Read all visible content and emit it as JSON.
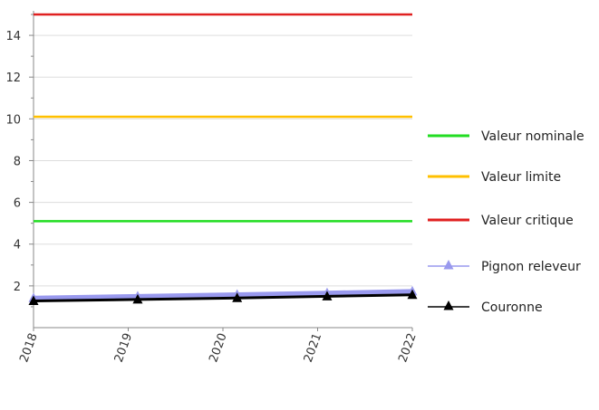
{
  "chart_data": {
    "type": "line",
    "title": "",
    "xlabel": "",
    "ylabel": "",
    "x_ticks": [
      "2018",
      "2019",
      "2020",
      "2021",
      "2022"
    ],
    "xlim": [
      2018,
      2022
    ],
    "ylim": [
      0,
      15
    ],
    "y_ticks": [
      2,
      4,
      6,
      8,
      10,
      12,
      14
    ],
    "grid": true,
    "legend_position": "right",
    "series": [
      {
        "name": "Valeur nominale",
        "color": "#22dd22",
        "marker": "none",
        "x": [
          2018,
          2022
        ],
        "y": [
          5.1,
          5.1
        ]
      },
      {
        "name": "Valeur limite",
        "color": "#ffc000",
        "marker": "none",
        "x": [
          2018,
          2022
        ],
        "y": [
          10.1,
          10.1
        ]
      },
      {
        "name": "Valeur critique",
        "color": "#e02020",
        "marker": "none",
        "x": [
          2018,
          2022
        ],
        "y": [
          15,
          15
        ]
      },
      {
        "name": "Pignon releveur",
        "color": "#9999ee",
        "marker": "triangle",
        "x": [
          2018,
          2019.1,
          2020.15,
          2021.1,
          2022
        ],
        "y": [
          1.42,
          1.5,
          1.58,
          1.66,
          1.74
        ]
      },
      {
        "name": "Couronne",
        "color": "#000000",
        "marker": "triangle",
        "x": [
          2018,
          2019.1,
          2020.15,
          2021.1,
          2022
        ],
        "y": [
          1.28,
          1.35,
          1.42,
          1.5,
          1.57
        ]
      }
    ]
  }
}
